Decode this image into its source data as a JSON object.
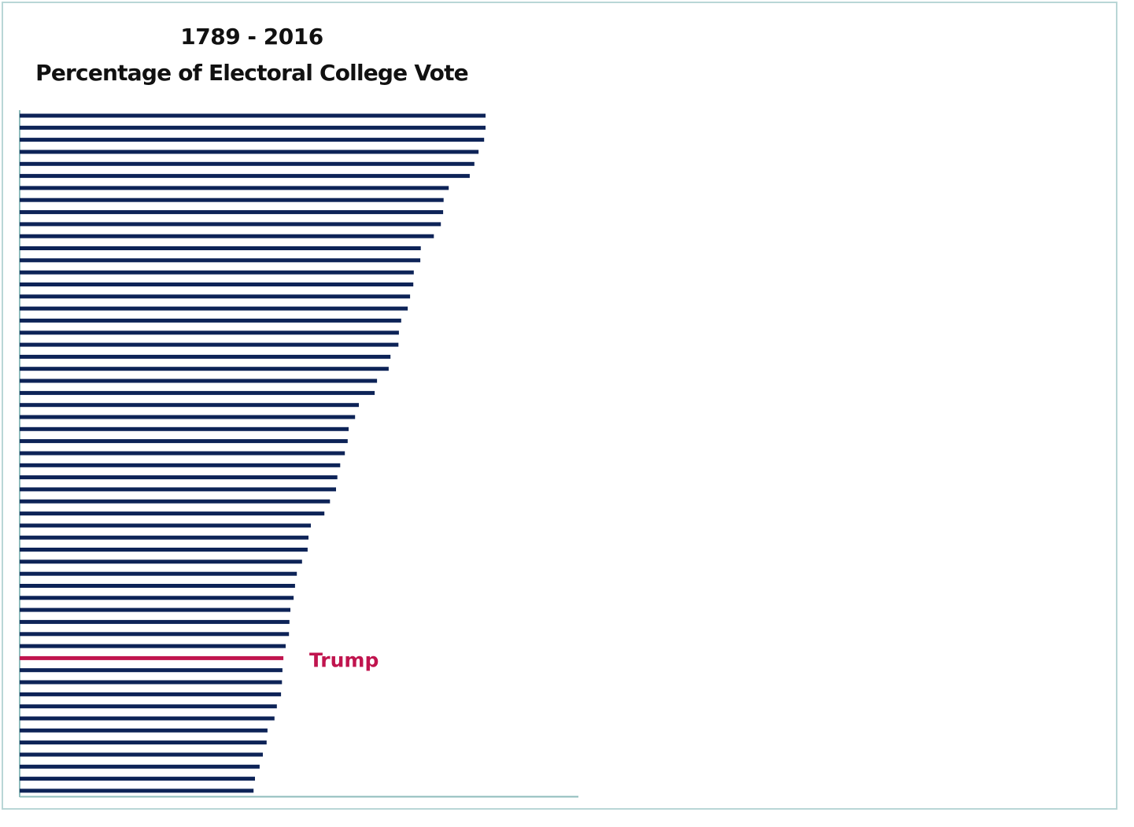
{
  "chart_data": {
    "type": "bar",
    "orientation": "horizontal",
    "title": "1789 - 2016",
    "subtitle": "Percentage of Electoral College Vote",
    "xlabel": "",
    "ylabel": "",
    "xlim": [
      0,
      120
    ],
    "grid": false,
    "sorted": "descending",
    "colors": {
      "default": "#0d2357",
      "highlight": "#c0144e"
    },
    "values": [
      100,
      100,
      99.7,
      98.5,
      97.6,
      96.6,
      92.1,
      91.0,
      90.9,
      90.4,
      88.9,
      86.1,
      86.0,
      84.6,
      84.5,
      83.8,
      83.3,
      81.9,
      81.4,
      81.3,
      79.6,
      79.2,
      76.7,
      76.2,
      72.8,
      72.0,
      70.6,
      70.4,
      69.8,
      68.8,
      68.2,
      67.9,
      66.6,
      65.4,
      62.5,
      62.0,
      61.8,
      60.6,
      59.5,
      59.1,
      58.8,
      58.1,
      57.9,
      57.8,
      57.1,
      56.6,
      56.4,
      56.3,
      56.1,
      55.2,
      54.7,
      53.2,
      53.0,
      52.2,
      51.5,
      50.5,
      50.2
    ],
    "highlight_index": 45,
    "annotations": [
      {
        "text": "Trump",
        "bar_index": 45
      }
    ]
  }
}
